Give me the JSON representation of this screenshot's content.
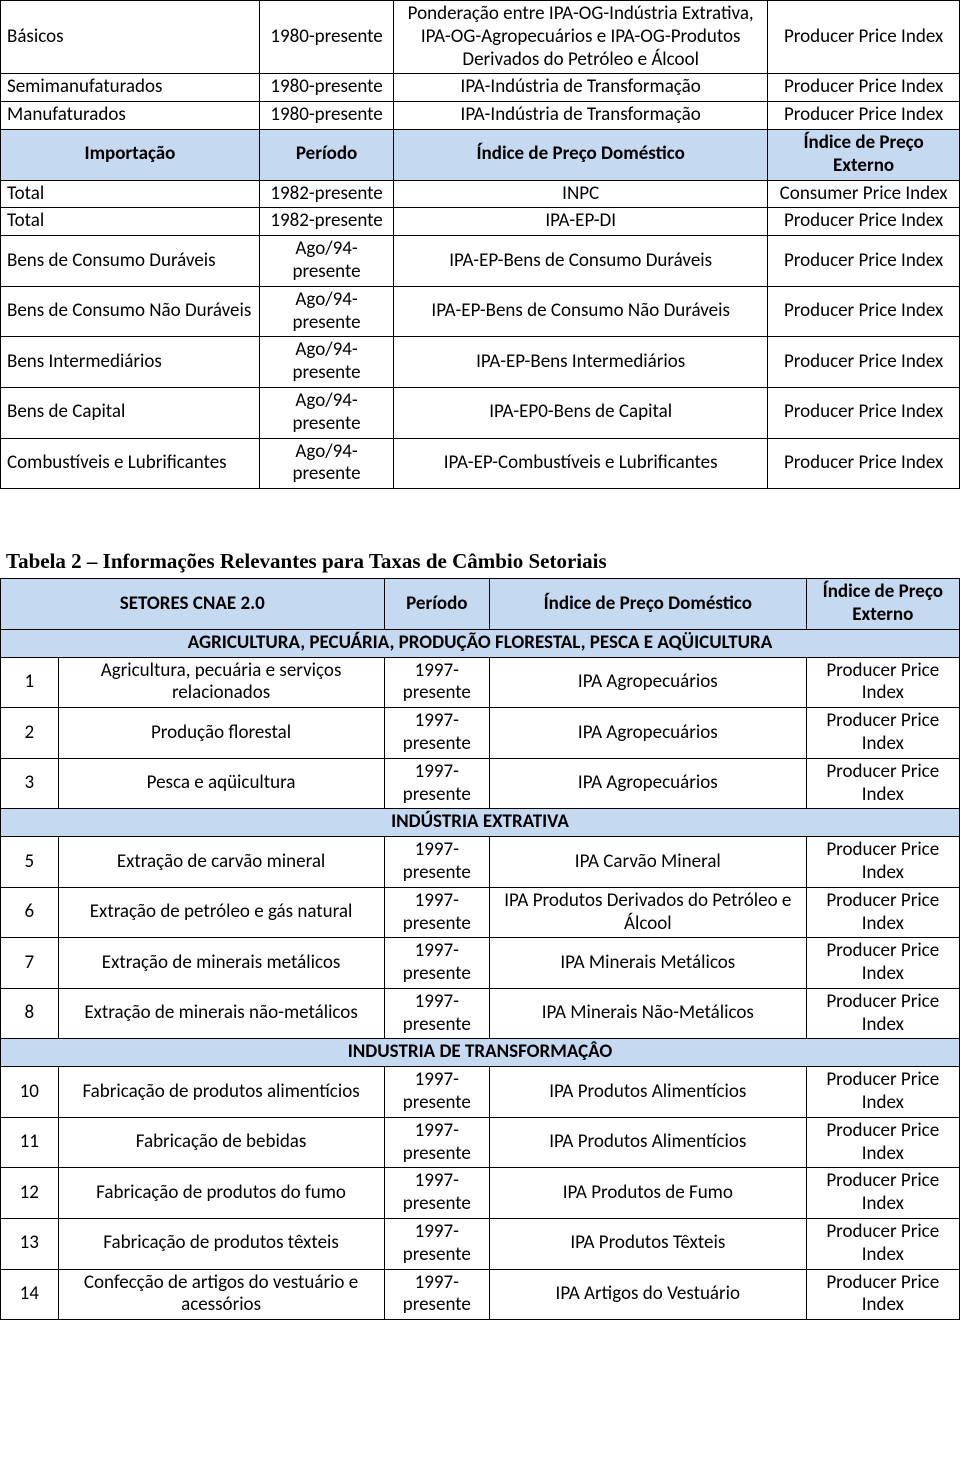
{
  "table1": {
    "rows": [
      {
        "c0": "Básicos",
        "c1": "1980-presente",
        "c2": "Ponderação entre IPA-OG-Indústria Extrativa, IPA-OG-Agropecuários e IPA-OG-Produtos Derivados do Petróleo e Álcool",
        "c3": "Producer Price Index"
      },
      {
        "c0": "Semimanufaturados",
        "c1": "1980-presente",
        "c2": "IPA-Indústria de Transformação",
        "c3": "Producer Price Index"
      },
      {
        "c0": "Manufaturados",
        "c1": "1980-presente",
        "c2": "IPA-Indústria de Transformação",
        "c3": "Producer Price Index"
      }
    ],
    "header": {
      "h0": "Importação",
      "h1": "Período",
      "h2": "Índice de Preço Doméstico",
      "h3": "Índice de Preço Externo"
    },
    "rows2": [
      {
        "c0": "Total",
        "c1": "1982-presente",
        "c2": "INPC",
        "c3": "Consumer Price Index"
      },
      {
        "c0": "Total",
        "c1": "1982-presente",
        "c2": "IPA-EP-DI",
        "c3": "Producer Price Index"
      },
      {
        "c0": "Bens de Consumo Duráveis",
        "c1": "Ago/94-presente",
        "c2": "IPA-EP-Bens de Consumo Duráveis",
        "c3": "Producer Price Index"
      },
      {
        "c0": "Bens de Consumo Não Duráveis",
        "c1": "Ago/94-presente",
        "c2": "IPA-EP-Bens de Consumo Não Duráveis",
        "c3": "Producer Price Index"
      },
      {
        "c0": "Bens Intermediários",
        "c1": "Ago/94-presente",
        "c2": "IPA-EP-Bens Intermediários",
        "c3": "Producer Price Index"
      },
      {
        "c0": "Bens de Capital",
        "c1": "Ago/94-presente",
        "c2": "IPA-EP0-Bens de Capital",
        "c3": "Producer Price Index"
      },
      {
        "c0": "Combustíveis e Lubrificantes",
        "c1": "Ago/94-presente",
        "c2": "IPA-EP-Combustíveis e Lubrificantes",
        "c3": "Producer Price Index"
      }
    ],
    "col_widths": [
      "27%",
      "14%",
      "39%",
      "20%"
    ]
  },
  "table2": {
    "title": "Tabela 2 – Informações Relevantes para Taxas de Câmbio Setoriais",
    "header": {
      "h0": "SETORES CNAE 2.0",
      "h1": "Período",
      "h2": "Índice de Preço Doméstico",
      "h3": "Índice de Preço Externo"
    },
    "sections": [
      {
        "title": "AGRICULTURA, PECUÁRIA, PRODUÇÃO FLORESTAL, PESCA E AQÜICULTURA",
        "rows": [
          {
            "n": "1",
            "c0": "Agricultura, pecuária e serviços relacionados",
            "c1": "1997-presente",
            "c2": "IPA Agropecuários",
            "c3": "Producer Price Index"
          },
          {
            "n": "2",
            "c0": "Produção florestal",
            "c1": "1997-presente",
            "c2": "IPA Agropecuários",
            "c3": "Producer Price Index"
          },
          {
            "n": "3",
            "c0": "Pesca e aqüicultura",
            "c1": "1997-presente",
            "c2": "IPA Agropecuários",
            "c3": "Producer Price Index"
          }
        ]
      },
      {
        "title": "INDÚSTRIA EXTRATIVA",
        "rows": [
          {
            "n": "5",
            "c0": "Extração de carvão mineral",
            "c1": "1997-presente",
            "c2": "IPA Carvão Mineral",
            "c3": "Producer Price Index"
          },
          {
            "n": "6",
            "c0": "Extração de petróleo e gás natural",
            "c1": "1997-presente",
            "c2": "IPA Produtos Derivados do Petróleo e Álcool",
            "c3": "Producer Price Index"
          },
          {
            "n": "7",
            "c0": "Extração de minerais metálicos",
            "c1": "1997-presente",
            "c2": "IPA Minerais Metálicos",
            "c3": "Producer Price Index"
          },
          {
            "n": "8",
            "c0": "Extração de minerais não-metálicos",
            "c1": "1997-presente",
            "c2": "IPA Minerais Não-Metálicos",
            "c3": "Producer Price Index"
          }
        ]
      },
      {
        "title": "INDUSTRIA DE TRANSFORMAÇÂO",
        "rows": [
          {
            "n": "10",
            "c0": "Fabricação de produtos alimentícios",
            "c1": "1997-presente",
            "c2": "IPA Produtos Alimentícios",
            "c3": "Producer Price Index"
          },
          {
            "n": "11",
            "c0": "Fabricação de bebidas",
            "c1": "1997-presente",
            "c2": "IPA Produtos Alimentícios",
            "c3": "Producer Price Index"
          },
          {
            "n": "12",
            "c0": "Fabricação de produtos do fumo",
            "c1": "1997-presente",
            "c2": "IPA Produtos de Fumo",
            "c3": "Producer Price Index"
          },
          {
            "n": "13",
            "c0": "Fabricação de produtos têxteis",
            "c1": "1997-presente",
            "c2": "IPA Produtos Têxteis",
            "c3": "Producer Price Index"
          },
          {
            "n": "14",
            "c0": "Confecção de artigos do vestuário e acessórios",
            "c1": "1997-presente",
            "c2": "IPA Artigos do Vestuário",
            "c3": "Producer Price Index"
          }
        ]
      }
    ],
    "col_widths": [
      "6%",
      "34%",
      "11%",
      "33%",
      "16%"
    ]
  }
}
